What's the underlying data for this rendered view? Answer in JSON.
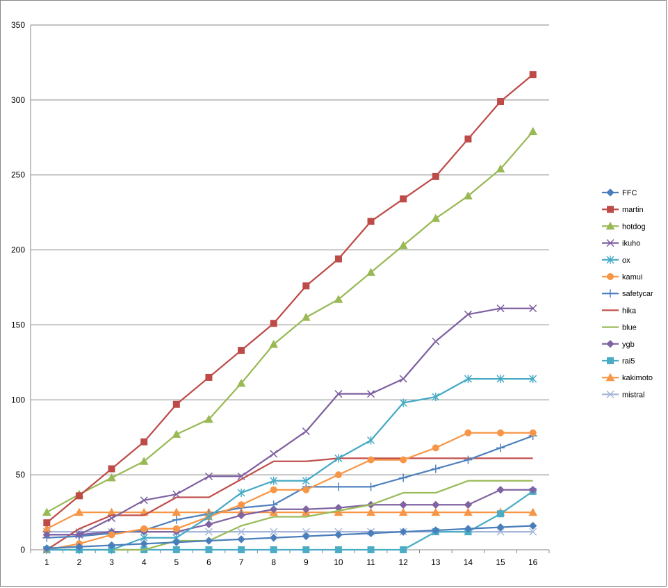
{
  "chart_data": {
    "type": "line",
    "title": "",
    "xlabel": "",
    "ylabel": "",
    "x": [
      1,
      2,
      3,
      4,
      5,
      6,
      7,
      8,
      9,
      10,
      11,
      12,
      13,
      14,
      15,
      16
    ],
    "ylim": [
      0,
      350
    ],
    "yticks": [
      0,
      50,
      100,
      150,
      200,
      250,
      300,
      350
    ],
    "grid": "horizontal",
    "legend_position": "right",
    "series": [
      {
        "name": "FFC",
        "color": "#4a7ebb",
        "marker": "diamond",
        "values": [
          1,
          2,
          3,
          4,
          5,
          6,
          7,
          8,
          9,
          10,
          11,
          12,
          13,
          14,
          15,
          16
        ]
      },
      {
        "name": "martin",
        "color": "#be4b48",
        "marker": "square",
        "values": [
          18,
          36,
          54,
          72,
          97,
          115,
          133,
          151,
          176,
          194,
          219,
          234,
          249,
          274,
          299,
          317
        ]
      },
      {
        "name": "hotdog",
        "color": "#98b954",
        "marker": "triangle",
        "values": [
          25,
          37,
          48,
          59,
          77,
          87,
          111,
          137,
          155,
          167,
          185,
          203,
          221,
          236,
          254,
          279
        ]
      },
      {
        "name": "ikuho",
        "color": "#7d60a0",
        "marker": "x",
        "values": [
          10,
          10,
          21,
          33,
          37,
          49,
          49,
          64,
          79,
          104,
          104,
          114,
          139,
          157,
          161,
          161
        ]
      },
      {
        "name": "ox",
        "color": "#46aac5",
        "marker": "star",
        "values": [
          0,
          0,
          0,
          8,
          8,
          22,
          38,
          46,
          46,
          61,
          73,
          98,
          102,
          114,
          114,
          114
        ]
      },
      {
        "name": "kamui",
        "color": "#f79646",
        "marker": "circle",
        "values": [
          0,
          4,
          10,
          14,
          14,
          22,
          30,
          40,
          40,
          50,
          60,
          60,
          68,
          78,
          78,
          78
        ]
      },
      {
        "name": "safetycar",
        "color": "#4f81bd",
        "marker": "plus",
        "values": [
          8,
          9,
          11,
          13,
          20,
          24,
          28,
          30,
          42,
          42,
          42,
          48,
          54,
          60,
          68,
          76
        ]
      },
      {
        "name": "hika",
        "color": "#c0504d",
        "marker": "none",
        "values": [
          0,
          14,
          23,
          23,
          35,
          35,
          47,
          59,
          59,
          61,
          61,
          61,
          61,
          61,
          61,
          61
        ]
      },
      {
        "name": "blue",
        "color": "#9bbb59",
        "marker": "none",
        "values": [
          0,
          0,
          0,
          0,
          6,
          6,
          16,
          22,
          22,
          26,
          30,
          38,
          38,
          46,
          46,
          46
        ]
      },
      {
        "name": "ygb",
        "color": "#8064a2",
        "marker": "diamond",
        "values": [
          10,
          10,
          12,
          12,
          12,
          17,
          23,
          27,
          27,
          28,
          30,
          30,
          30,
          30,
          40,
          40
        ]
      },
      {
        "name": "rai5",
        "color": "#4bacc6",
        "marker": "square",
        "values": [
          0,
          0,
          0,
          0,
          0,
          0,
          0,
          0,
          0,
          0,
          0,
          0,
          12,
          12,
          24,
          39
        ]
      },
      {
        "name": "kakimoto",
        "color": "#f79646",
        "marker": "triangle",
        "values": [
          14,
          25,
          25,
          25,
          25,
          25,
          25,
          25,
          25,
          25,
          25,
          25,
          25,
          25,
          25,
          25
        ]
      },
      {
        "name": "mistral",
        "color": "#a5b6d9",
        "marker": "x",
        "values": [
          12,
          12,
          12,
          12,
          12,
          12,
          12,
          12,
          12,
          12,
          12,
          12,
          12,
          12,
          12,
          12
        ]
      }
    ]
  }
}
